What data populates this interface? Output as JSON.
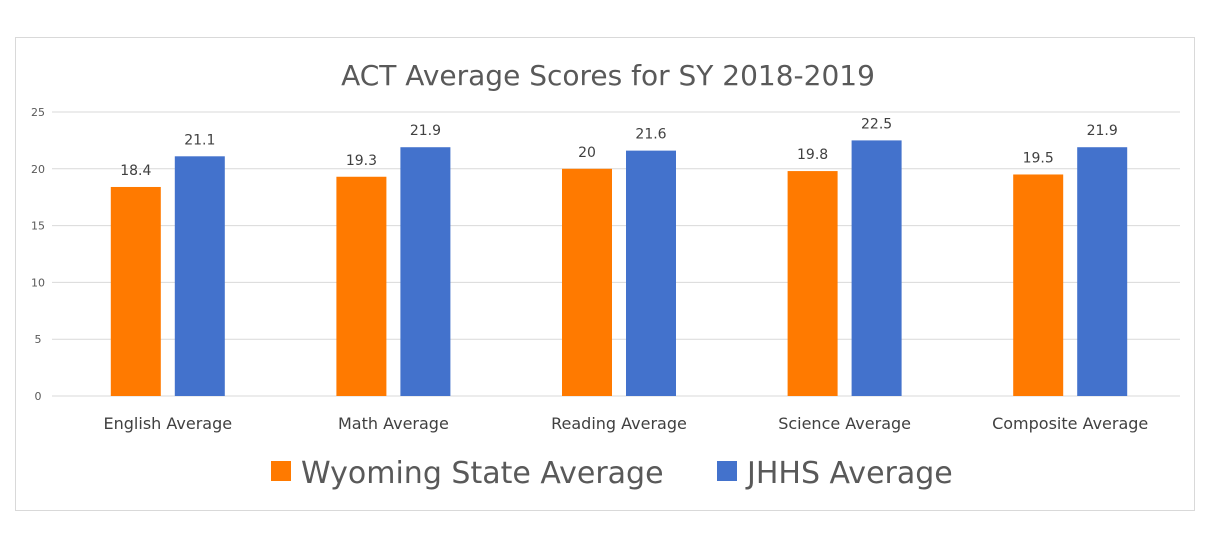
{
  "chart_data": {
    "type": "bar",
    "title": "ACT Average  Scores for SY 2018-2019",
    "xlabel": "",
    "ylabel": "",
    "categories": [
      "English Average",
      "Math Average",
      "Reading Average",
      "Science Average",
      "Composite Average"
    ],
    "series": [
      {
        "name": "Wyoming State Average",
        "color": "#ff7a00",
        "values": [
          18.4,
          19.3,
          20,
          19.8,
          19.5
        ],
        "labels": [
          "18.4",
          "19.3",
          "20",
          "19.8",
          "19.5"
        ]
      },
      {
        "name": "JHHS Average",
        "color": "#4372cc",
        "values": [
          21.1,
          21.9,
          21.6,
          22.5,
          21.9
        ],
        "labels": [
          "21.1",
          "21.9",
          "21.6",
          "22.5",
          "21.9"
        ]
      }
    ],
    "ylim": [
      0,
      25
    ],
    "yticks": [
      "0",
      "5",
      "10",
      "15",
      "20",
      "25"
    ],
    "grid": true,
    "legend_position": "bottom"
  }
}
